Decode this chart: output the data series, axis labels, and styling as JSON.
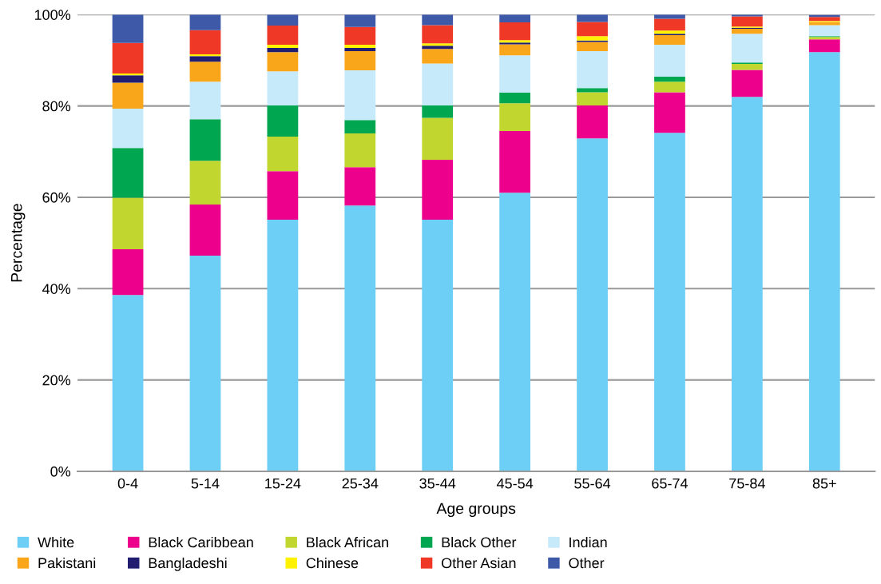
{
  "chart_data": {
    "type": "bar",
    "stacked": true,
    "xlabel": "Age groups",
    "ylabel": "Percentage",
    "categories": [
      "0-4",
      "5-14",
      "15-24",
      "25-34",
      "35-44",
      "45-54",
      "55-64",
      "65-74",
      "75-84",
      "85+"
    ],
    "ylim": [
      0,
      100
    ],
    "yticks": [
      {
        "value": 0,
        "label": "0%"
      },
      {
        "value": 20,
        "label": "20%"
      },
      {
        "value": 40,
        "label": "40%"
      },
      {
        "value": 60,
        "label": "60%"
      },
      {
        "value": 80,
        "label": "80%"
      },
      {
        "value": 100,
        "label": "100%"
      }
    ],
    "grid": "y",
    "legend": "bottom",
    "series": [
      {
        "name": "White",
        "color": "#6dcff6",
        "values": [
          38.6,
          47.2,
          55.1,
          58.2,
          55.1,
          61.0,
          72.9,
          74.1,
          82.0,
          91.8
        ]
      },
      {
        "name": "Black Caribbean",
        "color": "#ec008c",
        "values": [
          10.0,
          11.2,
          10.6,
          8.4,
          13.1,
          13.5,
          7.2,
          8.9,
          5.9,
          2.8
        ]
      },
      {
        "name": "Black African",
        "color": "#c1d72f",
        "values": [
          11.3,
          9.6,
          7.6,
          7.4,
          9.2,
          6.1,
          2.9,
          2.3,
          1.3,
          0.5
        ]
      },
      {
        "name": "Black Other",
        "color": "#00a650",
        "values": [
          10.9,
          9.1,
          6.8,
          2.9,
          2.7,
          2.3,
          0.9,
          1.1,
          0.3,
          0.2
        ]
      },
      {
        "name": "Indian",
        "color": "#c7eafb",
        "values": [
          8.6,
          8.2,
          7.5,
          10.9,
          9.2,
          8.2,
          8.1,
          7.0,
          6.3,
          2.4
        ]
      },
      {
        "name": "Pakistani",
        "color": "#faa61a",
        "values": [
          5.7,
          4.4,
          4.2,
          4.2,
          3.2,
          2.4,
          2.0,
          2.1,
          1.1,
          0.7
        ]
      },
      {
        "name": "Bangladeshi",
        "color": "#211d70",
        "values": [
          1.6,
          1.2,
          0.9,
          0.7,
          0.7,
          0.4,
          0.3,
          0.3,
          0.2,
          null
        ]
      },
      {
        "name": "Chinese",
        "color": "#fff200",
        "values": [
          0.4,
          0.4,
          0.7,
          0.7,
          0.5,
          0.5,
          1.0,
          0.7,
          0.3,
          0.2
        ]
      },
      {
        "name": "Other Asian",
        "color": "#ef3825",
        "values": [
          6.7,
          5.3,
          4.2,
          3.9,
          4.0,
          3.9,
          3.1,
          2.6,
          2.2,
          0.9
        ]
      },
      {
        "name": "Other",
        "color": "#3d59a8",
        "values": [
          6.2,
          3.4,
          2.4,
          2.7,
          2.3,
          1.7,
          1.6,
          0.9,
          0.4,
          0.4
        ]
      }
    ]
  }
}
